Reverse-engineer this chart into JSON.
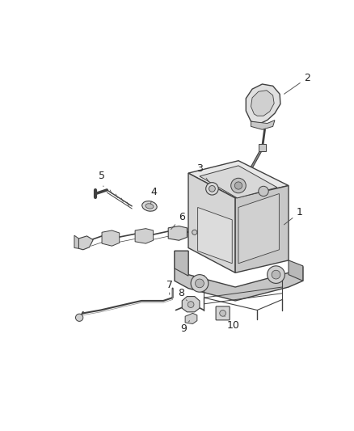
{
  "background_color": "#ffffff",
  "line_color": "#404040",
  "label_color": "#222222",
  "fig_width": 4.38,
  "fig_height": 5.33,
  "dpi": 100
}
